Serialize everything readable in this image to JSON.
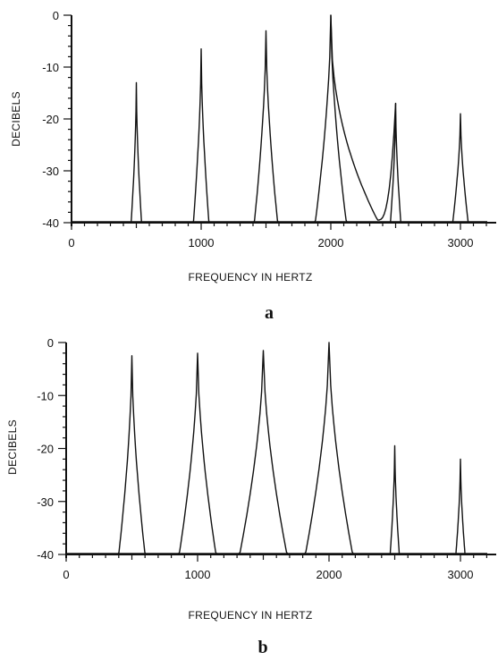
{
  "chart_data": [
    {
      "type": "line",
      "panel_label": "a",
      "xlabel": "FREQUENCY IN HERTZ",
      "ylabel": "DECIBELS",
      "xlim": [
        0,
        3200
      ],
      "ylim": [
        -40,
        0
      ],
      "x_ticks": [
        0,
        1000,
        2000,
        3000
      ],
      "x_tick_labels": [
        "0",
        "1000",
        "2000",
        "3000"
      ],
      "y_ticks": [
        0,
        -10,
        -20,
        -30,
        -40
      ],
      "y_tick_labels": [
        "0",
        "-10",
        "-20",
        "-30",
        "-40"
      ],
      "baseline": -40,
      "peaks": [
        {
          "freq": 500,
          "level": -13,
          "width": 40
        },
        {
          "freq": 1000,
          "level": -6.5,
          "width": 60
        },
        {
          "freq": 1500,
          "level": -3,
          "width": 90
        },
        {
          "freq": 2000,
          "level": 0,
          "width": 120
        },
        {
          "freq": 2500,
          "level": -17,
          "width": 40
        },
        {
          "freq": 3000,
          "level": -19,
          "width": 60
        }
      ],
      "trough": {
        "from": 2000,
        "to": 2500,
        "min_freq": 2360,
        "min_level": -39.5
      }
    },
    {
      "type": "line",
      "panel_label": "b",
      "xlabel": "FREQUENCY IN HERTZ",
      "ylabel": "DECIBELS",
      "xlim": [
        0,
        3200
      ],
      "ylim": [
        -40,
        0
      ],
      "x_ticks": [
        0,
        1000,
        2000,
        3000
      ],
      "x_tick_labels": [
        "0",
        "1000",
        "2000",
        "3000"
      ],
      "y_ticks": [
        0,
        -10,
        -20,
        -30,
        -40
      ],
      "y_tick_labels": [
        "0",
        "-10",
        "-20",
        "-30",
        "-40"
      ],
      "baseline": -40,
      "peaks": [
        {
          "freq": 500,
          "level": -2.5,
          "width": 100
        },
        {
          "freq": 1000,
          "level": -2,
          "width": 140
        },
        {
          "freq": 1500,
          "level": -1.5,
          "width": 180
        },
        {
          "freq": 2000,
          "level": 0,
          "width": 180
        },
        {
          "freq": 2500,
          "level": -19.5,
          "width": 35
        },
        {
          "freq": 3000,
          "level": -22,
          "width": 35
        }
      ]
    }
  ]
}
